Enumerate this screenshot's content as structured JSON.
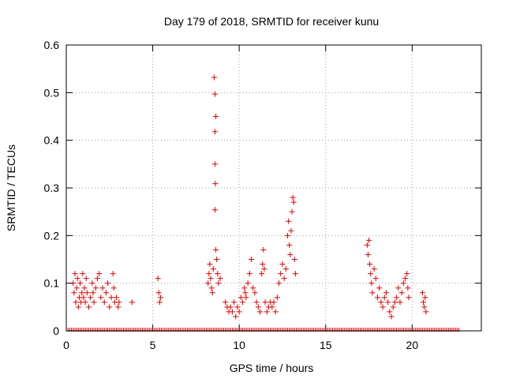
{
  "chart_data": {
    "type": "scatter",
    "title": "Day 179 of 2018, SRMTID for receiver kunu",
    "xlabel": "GPS time / hours",
    "ylabel": "SRMTID / TECUs",
    "xlim": [
      0,
      24
    ],
    "ylim": [
      0,
      0.6
    ],
    "x_ticks": [
      0,
      5,
      10,
      15,
      20
    ],
    "y_ticks": [
      0,
      0.1,
      0.2,
      0.3,
      0.4,
      0.5,
      0.6
    ],
    "x_tick_labels": [
      "0",
      "5",
      "10",
      "15",
      "20"
    ],
    "y_tick_labels": [
      "0",
      "0.1",
      "0.2",
      "0.3",
      "0.4",
      "0.5",
      "0.6"
    ],
    "grid": true,
    "marker": "plus",
    "color": "#e00000",
    "zero_segments": [
      [
        0.1,
        22.8
      ]
    ],
    "series": [
      {
        "name": "SRMTID",
        "points": [
          [
            0.4,
            0.1
          ],
          [
            0.45,
            0.08
          ],
          [
            0.5,
            0.12
          ],
          [
            0.55,
            0.06
          ],
          [
            0.6,
            0.09
          ],
          [
            0.65,
            0.11
          ],
          [
            0.7,
            0.05
          ],
          [
            0.75,
            0.07
          ],
          [
            0.8,
            0.1
          ],
          [
            0.85,
            0.06
          ],
          [
            0.9,
            0.08
          ],
          [
            0.95,
            0.12
          ],
          [
            1.0,
            0.07
          ],
          [
            1.05,
            0.09
          ],
          [
            1.1,
            0.06
          ],
          [
            1.15,
            0.11
          ],
          [
            1.2,
            0.08
          ],
          [
            1.3,
            0.05
          ],
          [
            1.4,
            0.07
          ],
          [
            1.5,
            0.1
          ],
          [
            1.55,
            0.08
          ],
          [
            1.6,
            0.06
          ],
          [
            1.7,
            0.09
          ],
          [
            1.8,
            0.11
          ],
          [
            1.9,
            0.12
          ],
          [
            2.0,
            0.07
          ],
          [
            2.1,
            0.09
          ],
          [
            2.2,
            0.06
          ],
          [
            2.3,
            0.08
          ],
          [
            2.4,
            0.1
          ],
          [
            2.5,
            0.05
          ],
          [
            2.6,
            0.07
          ],
          [
            2.7,
            0.12
          ],
          [
            2.75,
            0.09
          ],
          [
            2.8,
            0.06
          ],
          [
            2.9,
            0.07
          ],
          [
            3.0,
            0.05
          ],
          [
            3.05,
            0.06
          ],
          [
            3.8,
            0.06
          ],
          [
            5.3,
            0.11
          ],
          [
            5.35,
            0.08
          ],
          [
            5.4,
            0.06
          ],
          [
            5.45,
            0.07
          ],
          [
            8.2,
            0.1
          ],
          [
            8.25,
            0.12
          ],
          [
            8.3,
            0.14
          ],
          [
            8.35,
            0.11
          ],
          [
            8.4,
            0.09
          ],
          [
            8.45,
            0.08
          ],
          [
            8.5,
            0.13
          ],
          [
            8.55,
            0.532
          ],
          [
            8.6,
            0.497
          ],
          [
            8.65,
            0.45
          ],
          [
            8.6,
            0.418
          ],
          [
            8.6,
            0.35
          ],
          [
            8.62,
            0.309
          ],
          [
            8.6,
            0.254
          ],
          [
            8.65,
            0.17
          ],
          [
            8.7,
            0.15
          ],
          [
            8.75,
            0.12
          ],
          [
            8.8,
            0.1
          ],
          [
            8.9,
            0.11
          ],
          [
            9.2,
            0.06
          ],
          [
            9.3,
            0.05
          ],
          [
            9.4,
            0.04
          ],
          [
            9.5,
            0.05
          ],
          [
            9.6,
            0.04
          ],
          [
            9.7,
            0.06
          ],
          [
            9.8,
            0.03
          ],
          [
            9.9,
            0.05
          ],
          [
            10.0,
            0.04
          ],
          [
            10.1,
            0.07
          ],
          [
            10.2,
            0.06
          ],
          [
            10.3,
            0.09
          ],
          [
            10.35,
            0.08
          ],
          [
            10.4,
            0.07
          ],
          [
            10.5,
            0.1
          ],
          [
            10.6,
            0.12
          ],
          [
            10.7,
            0.15
          ],
          [
            10.8,
            0.09
          ],
          [
            10.9,
            0.08
          ],
          [
            11.0,
            0.06
          ],
          [
            11.1,
            0.05
          ],
          [
            11.2,
            0.04
          ],
          [
            11.3,
            0.12
          ],
          [
            11.35,
            0.14
          ],
          [
            11.4,
            0.17
          ],
          [
            11.45,
            0.13
          ],
          [
            11.5,
            0.06
          ],
          [
            11.6,
            0.04
          ],
          [
            11.7,
            0.05
          ],
          [
            11.8,
            0.06
          ],
          [
            11.9,
            0.05
          ],
          [
            12.0,
            0.06
          ],
          [
            12.1,
            0.04
          ],
          [
            12.2,
            0.07
          ],
          [
            12.3,
            0.1
          ],
          [
            12.4,
            0.12
          ],
          [
            12.5,
            0.14
          ],
          [
            12.6,
            0.11
          ],
          [
            12.7,
            0.13
          ],
          [
            12.8,
            0.2
          ],
          [
            12.85,
            0.23
          ],
          [
            12.9,
            0.18
          ],
          [
            12.95,
            0.16
          ],
          [
            13.0,
            0.21
          ],
          [
            13.05,
            0.25
          ],
          [
            13.1,
            0.28
          ],
          [
            13.15,
            0.27
          ],
          [
            13.2,
            0.15
          ],
          [
            13.25,
            0.12
          ],
          [
            17.4,
            0.18
          ],
          [
            17.45,
            0.16
          ],
          [
            17.5,
            0.19
          ],
          [
            17.55,
            0.14
          ],
          [
            17.6,
            0.12
          ],
          [
            17.65,
            0.1
          ],
          [
            17.7,
            0.08
          ],
          [
            17.8,
            0.13
          ],
          [
            17.9,
            0.11
          ],
          [
            18.0,
            0.07
          ],
          [
            18.1,
            0.09
          ],
          [
            18.2,
            0.06
          ],
          [
            18.3,
            0.05
          ],
          [
            18.4,
            0.07
          ],
          [
            18.5,
            0.08
          ],
          [
            18.6,
            0.06
          ],
          [
            18.7,
            0.04
          ],
          [
            18.8,
            0.03
          ],
          [
            18.9,
            0.05
          ],
          [
            19.0,
            0.06
          ],
          [
            19.1,
            0.07
          ],
          [
            19.2,
            0.09
          ],
          [
            19.3,
            0.06
          ],
          [
            19.4,
            0.08
          ],
          [
            19.5,
            0.1
          ],
          [
            19.6,
            0.11
          ],
          [
            19.7,
            0.12
          ],
          [
            19.75,
            0.09
          ],
          [
            19.8,
            0.07
          ],
          [
            20.6,
            0.08
          ],
          [
            20.65,
            0.06
          ],
          [
            20.7,
            0.05
          ],
          [
            20.75,
            0.07
          ],
          [
            20.8,
            0.04
          ]
        ]
      }
    ]
  }
}
